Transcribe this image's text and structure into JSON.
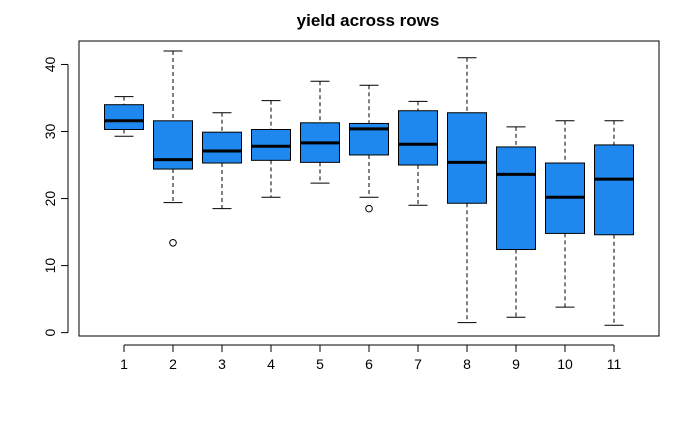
{
  "chart_data": {
    "type": "boxplot",
    "title": "yield across rows",
    "xlabel": "",
    "ylabel": "",
    "categories": [
      "1",
      "2",
      "3",
      "4",
      "5",
      "6",
      "7",
      "8",
      "9",
      "10",
      "11"
    ],
    "ylim": [
      -0.5,
      43.5
    ],
    "yticks": [
      0,
      10,
      20,
      30,
      40
    ],
    "box_color": "#1e88ee",
    "boxes": [
      {
        "label": "1",
        "whisker_low": 29.3,
        "q1": 30.3,
        "median": 31.6,
        "q3": 34.0,
        "whisker_high": 35.2,
        "outliers": []
      },
      {
        "label": "2",
        "whisker_low": 19.4,
        "q1": 24.4,
        "median": 25.8,
        "q3": 31.6,
        "whisker_high": 42.0,
        "outliers": [
          13.4
        ]
      },
      {
        "label": "3",
        "whisker_low": 18.5,
        "q1": 25.3,
        "median": 27.1,
        "q3": 29.9,
        "whisker_high": 32.8,
        "outliers": []
      },
      {
        "label": "4",
        "whisker_low": 20.2,
        "q1": 25.7,
        "median": 27.8,
        "q3": 30.3,
        "whisker_high": 34.6,
        "outliers": []
      },
      {
        "label": "5",
        "whisker_low": 22.3,
        "q1": 25.4,
        "median": 28.3,
        "q3": 31.3,
        "whisker_high": 37.5,
        "outliers": []
      },
      {
        "label": "6",
        "whisker_low": 20.2,
        "q1": 26.5,
        "median": 30.4,
        "q3": 31.2,
        "whisker_high": 36.9,
        "outliers": [
          18.5
        ]
      },
      {
        "label": "7",
        "whisker_low": 19.0,
        "q1": 25.0,
        "median": 28.1,
        "q3": 33.1,
        "whisker_high": 34.5,
        "outliers": []
      },
      {
        "label": "8",
        "whisker_low": 1.5,
        "q1": 19.3,
        "median": 25.4,
        "q3": 32.8,
        "whisker_high": 41.0,
        "outliers": []
      },
      {
        "label": "9",
        "whisker_low": 2.3,
        "q1": 12.4,
        "median": 23.6,
        "q3": 27.7,
        "whisker_high": 30.7,
        "outliers": []
      },
      {
        "label": "10",
        "whisker_low": 3.8,
        "q1": 14.8,
        "median": 20.2,
        "q3": 25.3,
        "whisker_high": 31.6,
        "outliers": []
      },
      {
        "label": "11",
        "whisker_low": 1.1,
        "q1": 14.6,
        "median": 22.9,
        "q3": 28.0,
        "whisker_high": 31.6,
        "outliers": []
      }
    ]
  }
}
